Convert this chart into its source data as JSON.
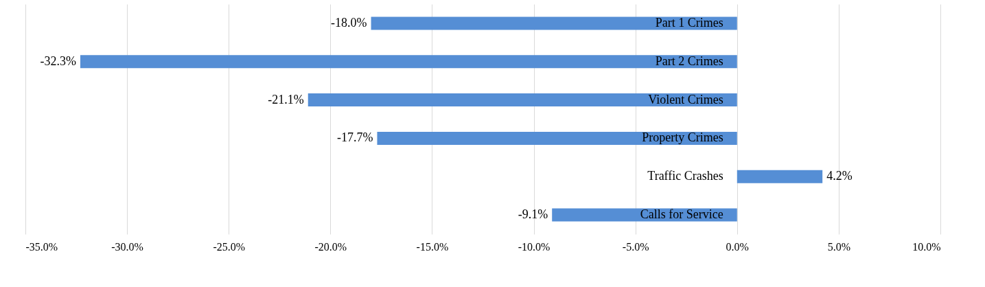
{
  "chart_data": {
    "type": "bar",
    "orientation": "horizontal",
    "categories": [
      "Part 1 Crimes",
      "Part 2 Crimes",
      "Violent Crimes",
      "Property Crimes",
      "Traffic Crashes",
      "Calls for Service"
    ],
    "values": [
      -18.0,
      -32.3,
      -21.1,
      -17.7,
      4.2,
      -9.1
    ],
    "value_labels": [
      "-18.0%",
      "-32.3%",
      "-21.1%",
      "-17.7%",
      "4.2%",
      "-9.1%"
    ],
    "color": "#558ed5",
    "xlim": [
      -35,
      10
    ],
    "xticks": [
      {
        "value": -35,
        "label": "-35.0%"
      },
      {
        "value": -30,
        "label": "-30.0%"
      },
      {
        "value": -25,
        "label": "-25.0%"
      },
      {
        "value": -20,
        "label": "-20.0%"
      },
      {
        "value": -15,
        "label": "-15.0%"
      },
      {
        "value": -10,
        "label": "-10.0%"
      },
      {
        "value": -5,
        "label": "-5.0%"
      },
      {
        "value": 0,
        "label": "0.0%"
      },
      {
        "value": 5,
        "label": "5.0%"
      },
      {
        "value": 10,
        "label": "10.0%"
      }
    ],
    "grid": "x"
  }
}
